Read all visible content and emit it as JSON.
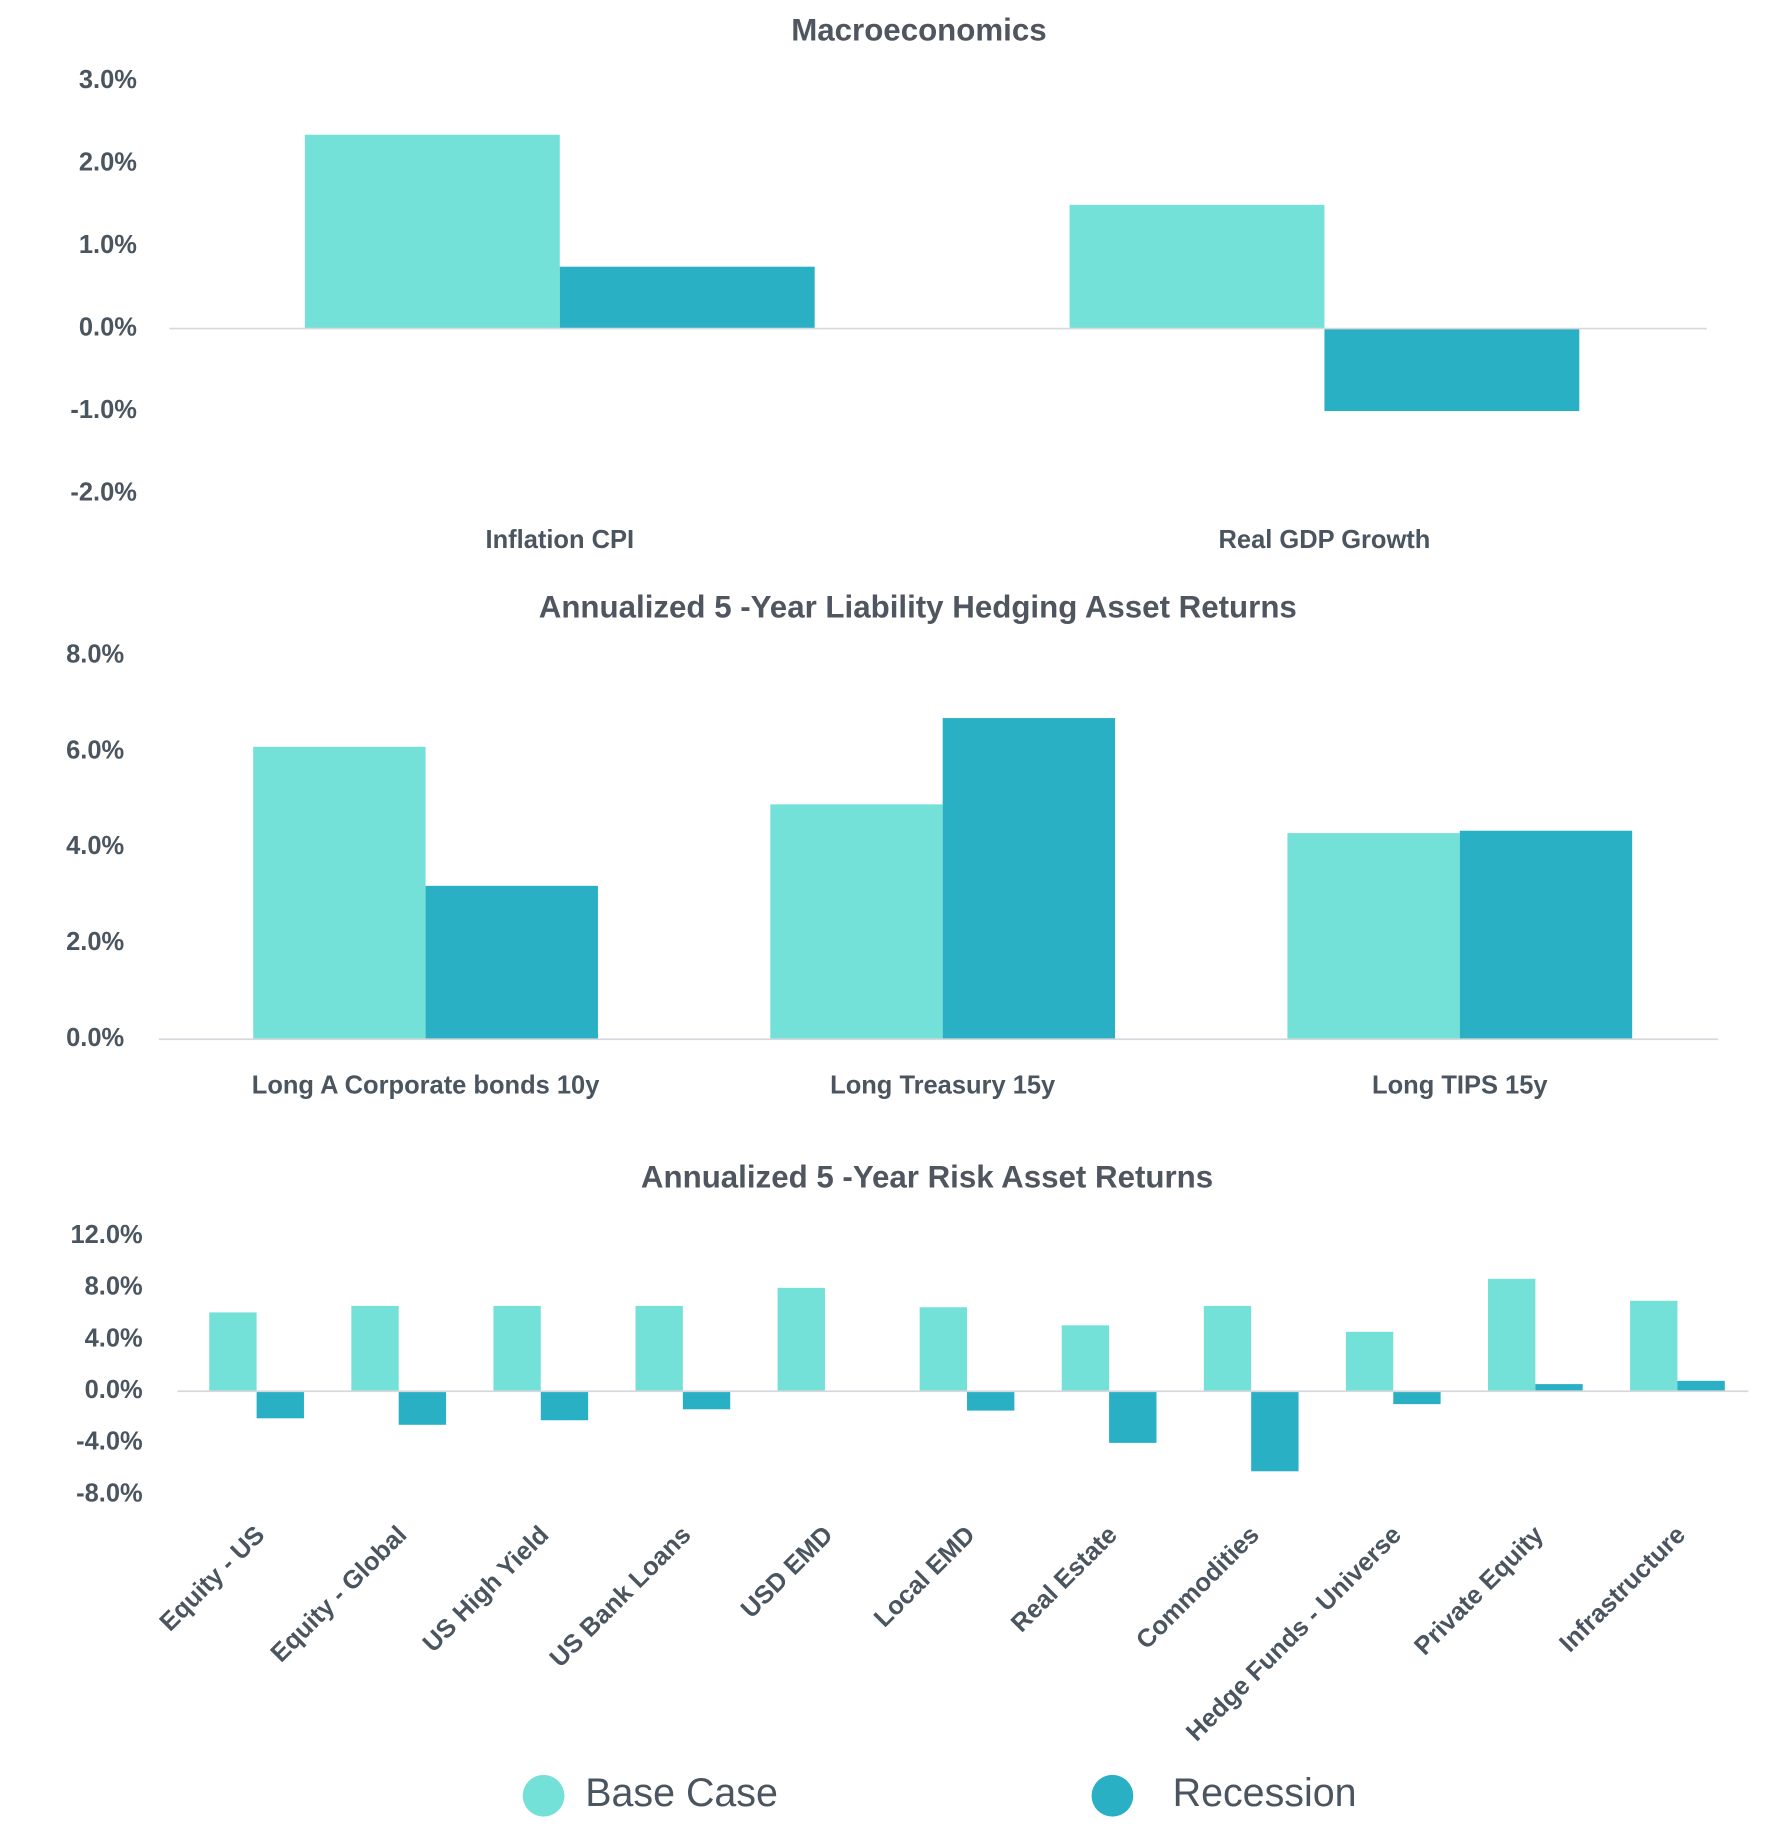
{
  "chart_data": [
    {
      "type": "bar",
      "title": "Macroeconomics",
      "categories": [
        "Inflation CPI",
        "Real GDP Growth"
      ],
      "series": [
        {
          "name": "Base Case",
          "color": "#74e1d8",
          "values": [
            2.35,
            1.5
          ]
        },
        {
          "name": "Recession",
          "color": "#2ab0c4",
          "values": [
            0.75,
            -1.0
          ]
        }
      ],
      "ylim": [
        -2,
        3
      ],
      "yticks": [
        {
          "value": -2,
          "label": "-2.0%"
        },
        {
          "value": -1,
          "label": "-1.0%"
        },
        {
          "value": 0,
          "label": "0.0%"
        },
        {
          "value": 1,
          "label": "1.0%"
        },
        {
          "value": 2,
          "label": "2.0%"
        },
        {
          "value": 3,
          "label": "3.0%"
        }
      ]
    },
    {
      "type": "bar",
      "title": "Annualized 5 -Year Liability Hedging Asset Returns",
      "categories": [
        "Long A Corporate bonds 10y",
        "Long Treasury 15y",
        "Long TIPS 15y"
      ],
      "series": [
        {
          "name": "Base Case",
          "color": "#74e1d8",
          "values": [
            6.1,
            4.9,
            4.3
          ]
        },
        {
          "name": "Recession",
          "color": "#2ab0c4",
          "values": [
            3.2,
            6.7,
            4.35
          ]
        }
      ],
      "ylim": [
        0,
        8
      ],
      "yticks": [
        {
          "value": 0,
          "label": "0.0%"
        },
        {
          "value": 2,
          "label": "2.0%"
        },
        {
          "value": 4,
          "label": "4.0%"
        },
        {
          "value": 6,
          "label": "6.0%"
        },
        {
          "value": 8,
          "label": "8.0%"
        }
      ]
    },
    {
      "type": "bar",
      "title": "Annualized 5 -Year Risk Asset Returns",
      "categories": [
        "Equity - US",
        "Equity - Global",
        "US High Yield",
        "US Bank Loans",
        "USD EMD",
        "Local EMD",
        "Real Estate",
        "Commodities",
        "Hedge Funds - Universe",
        "Private Equity",
        "Infrastructure"
      ],
      "series": [
        {
          "name": "Base Case",
          "color": "#74e1d8",
          "values": [
            6.1,
            6.6,
            6.6,
            6.6,
            8.0,
            6.5,
            5.1,
            6.6,
            4.6,
            8.7,
            7.0
          ]
        },
        {
          "name": "Recession",
          "color": "#2ab0c4",
          "values": [
            -2.1,
            -2.6,
            -2.25,
            -1.4,
            0,
            -1.5,
            -4.0,
            -6.2,
            -1.0,
            0.55,
            0.8
          ]
        }
      ],
      "ylim": [
        -8,
        12
      ],
      "yticks": [
        {
          "value": -8,
          "label": "-8.0%"
        },
        {
          "value": -4,
          "label": "-4.0%"
        },
        {
          "value": 0,
          "label": "0.0%"
        },
        {
          "value": 4,
          "label": "4.0%"
        },
        {
          "value": 8,
          "label": "8.0%"
        },
        {
          "value": 12,
          "label": "12.0%"
        }
      ]
    }
  ]
}
